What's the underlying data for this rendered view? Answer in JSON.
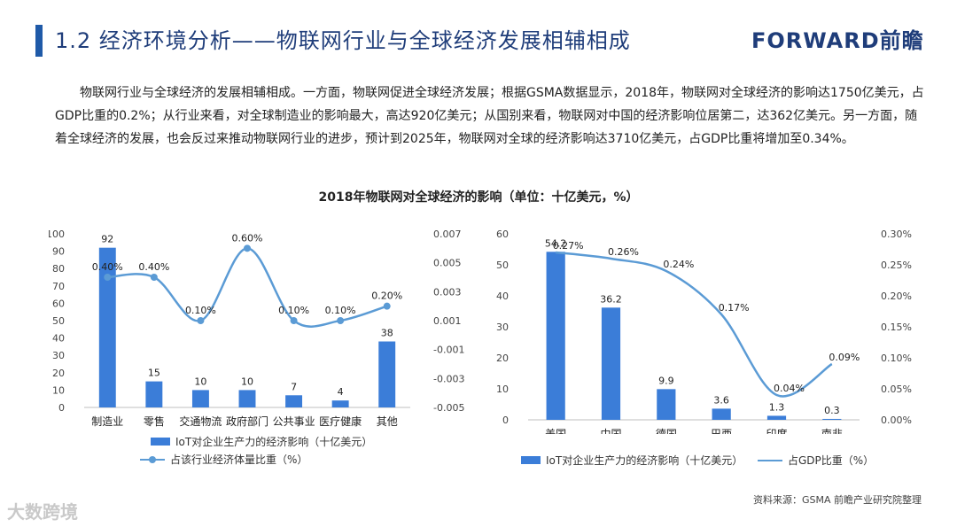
{
  "header": {
    "title": "1.2 经济环境分析——物联网行业与全球经济发展相辅相成",
    "brand": "FORWARD前瞻"
  },
  "body_text": "物联网行业与全球经济的发展相辅相成。一方面，物联网促进全球经济发展；根据GSMA数据显示，2018年，物联网对全球经济的影响达1750亿美元，占GDP比重的0.2%；从行业来看，对全球制造业的影响最大，高达920亿美元；从国别来看，物联网对中国的经济影响位居第二，达362亿美元。另一方面，随着全球经济的发展，也会反过来推动物联网行业的进步，预计到2025年，物联网对全球的经济影响达3710亿美元，占GDP比重将增加至0.34%。",
  "figure_title": "2018年物联网对全球经济的影响（单位：十亿美元，%）",
  "source": "资料来源：GSMA 前瞻产业研究院整理",
  "watermark": "大数跨境",
  "chart_data": [
    {
      "type": "bar",
      "categories": [
        "制造业",
        "零售",
        "交通物流",
        "政府部门",
        "公共事业",
        "医疗健康",
        "其他"
      ],
      "series": [
        {
          "name": "IoT对企业生产力的经济影响（十亿美元）",
          "kind": "bar",
          "axis": "left",
          "values": [
            92,
            15,
            10,
            10,
            7,
            4,
            38
          ],
          "labels": [
            "92",
            "15",
            "10",
            "10",
            "7",
            "4",
            "38"
          ]
        },
        {
          "name": "占该行业经济体量比重（%）",
          "kind": "line",
          "axis": "right",
          "values": [
            0.004,
            0.004,
            0.001,
            0.006,
            0.001,
            0.001,
            0.002
          ],
          "labels": [
            "0.40%",
            "0.40%",
            "0.10%",
            "0.60%",
            "0.10%",
            "0.10%",
            "0.20%"
          ]
        }
      ],
      "ylim": [
        0,
        100
      ],
      "yticks": [
        0,
        10,
        20,
        30,
        40,
        50,
        60,
        70,
        80,
        90,
        100
      ],
      "y2lim": [
        -0.005,
        0.007
      ],
      "y2ticks": [
        "-0.005",
        "-0.003",
        "-0.001",
        "0.001",
        "0.003",
        "0.005",
        "0.007"
      ],
      "legend": "bottom",
      "grid": false
    },
    {
      "type": "bar",
      "categories": [
        "美国",
        "中国",
        "德国",
        "巴西",
        "印度",
        "南非"
      ],
      "series": [
        {
          "name": "IoT对企业生产力的经济影响（十亿美元）",
          "kind": "bar",
          "axis": "left",
          "values": [
            54.2,
            36.2,
            9.9,
            3.6,
            1.3,
            0.3
          ],
          "labels": [
            "54.2",
            "36.2",
            "9.9",
            "3.6",
            "1.3",
            "0.3"
          ]
        },
        {
          "name": "占GDP比重（%）",
          "kind": "line",
          "axis": "right",
          "values": [
            0.0027,
            0.0026,
            0.0024,
            0.0017,
            0.0004,
            0.0009
          ],
          "labels": [
            "0.27%",
            "0.26%",
            "0.24%",
            "0.17%",
            "0.04%",
            "0.09%"
          ]
        }
      ],
      "ylim": [
        0,
        60
      ],
      "yticks": [
        0,
        10,
        20,
        30,
        40,
        50,
        60
      ],
      "y2lim": [
        0,
        0.003
      ],
      "y2ticks": [
        "0.00%",
        "0.05%",
        "0.10%",
        "0.15%",
        "0.20%",
        "0.25%",
        "0.30%"
      ],
      "legend": "bottom",
      "grid": false
    }
  ],
  "colors": {
    "bar": "#3b7dd8",
    "line": "#5b9bd5",
    "title": "#1f3d7a",
    "accent": "#1f5aa8"
  }
}
